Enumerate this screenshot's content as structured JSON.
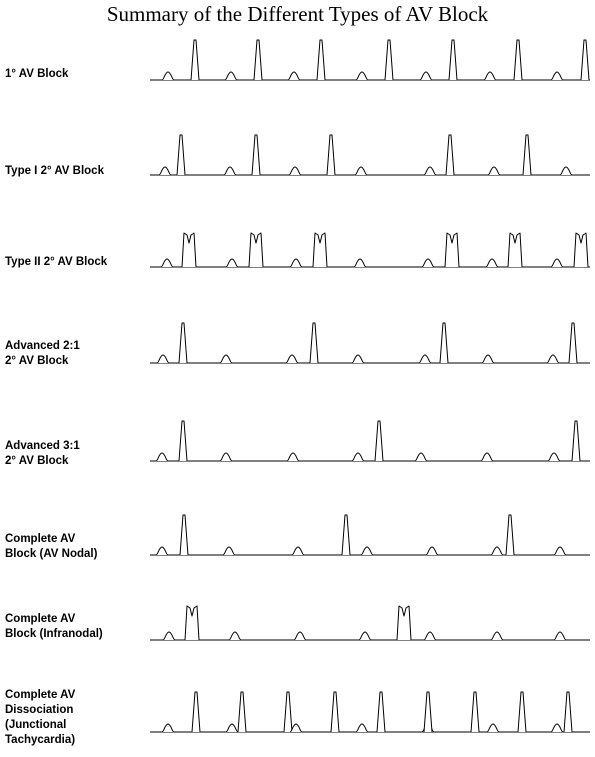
{
  "title": "Summary of the Different Types of AV Block",
  "rows": [
    {
      "id": "first-degree",
      "label_lines": [
        "1° AV Block"
      ],
      "beats": [
        {
          "kind": "P",
          "t": 168
        },
        {
          "kind": "QRS",
          "t": 195
        },
        {
          "kind": "P",
          "t": 231
        },
        {
          "kind": "QRS",
          "t": 258
        },
        {
          "kind": "P",
          "t": 294
        },
        {
          "kind": "QRS",
          "t": 321
        },
        {
          "kind": "P",
          "t": 362
        },
        {
          "kind": "QRS",
          "t": 389
        },
        {
          "kind": "P",
          "t": 426
        },
        {
          "kind": "QRS",
          "t": 453
        },
        {
          "kind": "P",
          "t": 490
        },
        {
          "kind": "QRS",
          "t": 518
        },
        {
          "kind": "P",
          "t": 557
        },
        {
          "kind": "QRS",
          "t": 585
        }
      ]
    },
    {
      "id": "type-1-second-degree",
      "label_lines": [
        "Type I  2° AV Block"
      ],
      "beats": [
        {
          "kind": "P",
          "t": 165
        },
        {
          "kind": "QRS",
          "t": 181
        },
        {
          "kind": "P",
          "t": 230
        },
        {
          "kind": "QRS",
          "t": 256
        },
        {
          "kind": "P",
          "t": 295
        },
        {
          "kind": "QRS",
          "t": 331
        },
        {
          "kind": "P",
          "t": 361
        },
        {
          "kind": "P",
          "t": 430
        },
        {
          "kind": "QRS",
          "t": 450
        },
        {
          "kind": "P",
          "t": 494
        },
        {
          "kind": "QRS",
          "t": 527
        },
        {
          "kind": "P",
          "t": 566
        }
      ]
    },
    {
      "id": "type-2-second-degree",
      "label_lines": [
        "Type II  2° AV Block"
      ],
      "beats": [
        {
          "kind": "P",
          "t": 167
        },
        {
          "kind": "QRS_M",
          "t": 189
        },
        {
          "kind": "P",
          "t": 232
        },
        {
          "kind": "QRS_M",
          "t": 256
        },
        {
          "kind": "P",
          "t": 296
        },
        {
          "kind": "QRS_M",
          "t": 320
        },
        {
          "kind": "P",
          "t": 360
        },
        {
          "kind": "P",
          "t": 428
        },
        {
          "kind": "QRS_M",
          "t": 452
        },
        {
          "kind": "P",
          "t": 492
        },
        {
          "kind": "QRS_M",
          "t": 515
        },
        {
          "kind": "P",
          "t": 557
        },
        {
          "kind": "QRS_M",
          "t": 581
        }
      ]
    },
    {
      "id": "advanced-2-1",
      "label_lines": [
        "Advanced 2:1",
        "2° AV Block"
      ],
      "beats": [
        {
          "kind": "P",
          "t": 163
        },
        {
          "kind": "QRS",
          "t": 183
        },
        {
          "kind": "P",
          "t": 226
        },
        {
          "kind": "P",
          "t": 292
        },
        {
          "kind": "QRS",
          "t": 314
        },
        {
          "kind": "P",
          "t": 358
        },
        {
          "kind": "P",
          "t": 425
        },
        {
          "kind": "QRS",
          "t": 444
        },
        {
          "kind": "P",
          "t": 488
        },
        {
          "kind": "P",
          "t": 553
        },
        {
          "kind": "QRS",
          "t": 573
        }
      ]
    },
    {
      "id": "advanced-3-1",
      "label_lines": [
        "Advanced 3:1",
        "2° AV Block"
      ],
      "beats": [
        {
          "kind": "P",
          "t": 162
        },
        {
          "kind": "QRS",
          "t": 183
        },
        {
          "kind": "P",
          "t": 226
        },
        {
          "kind": "P",
          "t": 293
        },
        {
          "kind": "P",
          "t": 358
        },
        {
          "kind": "QRS",
          "t": 379
        },
        {
          "kind": "P",
          "t": 421
        },
        {
          "kind": "P",
          "t": 487
        },
        {
          "kind": "P",
          "t": 554
        },
        {
          "kind": "QRS",
          "t": 576
        }
      ]
    },
    {
      "id": "complete-av-nodal",
      "label_lines": [
        "Complete AV",
        "Block (AV Nodal)"
      ],
      "beats": [
        {
          "kind": "P",
          "t": 162
        },
        {
          "kind": "QRS",
          "t": 184
        },
        {
          "kind": "P",
          "t": 229
        },
        {
          "kind": "P",
          "t": 298
        },
        {
          "kind": "QRS",
          "t": 346
        },
        {
          "kind": "P",
          "t": 367
        },
        {
          "kind": "P",
          "t": 432
        },
        {
          "kind": "P",
          "t": 497
        },
        {
          "kind": "QRS",
          "t": 510
        },
        {
          "kind": "P",
          "t": 560
        }
      ]
    },
    {
      "id": "complete-infranodal",
      "label_lines": [
        "Complete AV",
        "Block (Infranodal)"
      ],
      "beats": [
        {
          "kind": "P",
          "t": 169
        },
        {
          "kind": "QRS_M",
          "t": 192
        },
        {
          "kind": "P",
          "t": 235
        },
        {
          "kind": "P",
          "t": 300
        },
        {
          "kind": "P",
          "t": 365
        },
        {
          "kind": "QRS_M",
          "t": 404
        },
        {
          "kind": "P",
          "t": 430
        },
        {
          "kind": "P",
          "t": 497
        },
        {
          "kind": "P",
          "t": 560
        }
      ]
    },
    {
      "id": "complete-dissociation",
      "label_lines": [
        "Complete AV",
        "Dissociation",
        "(Junctional",
        "Tachycardia)"
      ],
      "beats": [
        {
          "kind": "P",
          "t": 168
        },
        {
          "kind": "QRS",
          "t": 196
        },
        {
          "kind": "P",
          "t": 232
        },
        {
          "kind": "QRS",
          "t": 242
        },
        {
          "kind": "P",
          "t": 296
        },
        {
          "kind": "QRS",
          "t": 288
        },
        {
          "kind": "QRS",
          "t": 335
        },
        {
          "kind": "P",
          "t": 362
        },
        {
          "kind": "QRS",
          "t": 381
        },
        {
          "kind": "P",
          "t": 428
        },
        {
          "kind": "QRS",
          "t": 428
        },
        {
          "kind": "P",
          "t": 493
        },
        {
          "kind": "QRS",
          "t": 475
        },
        {
          "kind": "QRS",
          "t": 522
        },
        {
          "kind": "P",
          "t": 557
        },
        {
          "kind": "QRS",
          "t": 568
        }
      ]
    }
  ]
}
